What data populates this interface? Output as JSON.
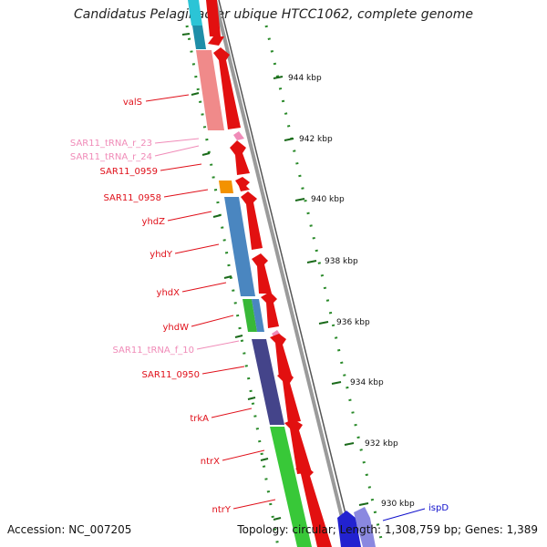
{
  "map": {
    "title": "Candidatus Pelagibacter ubique HTCC1062, complete genome",
    "accession": "Accession: NC_007205",
    "topology": "Topology: circular; Length: 1,308,759 bp; Genes: 1,389"
  },
  "ruler": [
    {
      "label": "944 kbp"
    },
    {
      "label": "942 kbp"
    },
    {
      "label": "940 kbp"
    },
    {
      "label": "938 kbp"
    },
    {
      "label": "936 kbp"
    },
    {
      "label": "934 kbp"
    },
    {
      "label": "932 kbp"
    },
    {
      "label": "930 kbp"
    }
  ],
  "gene_labels": [
    {
      "name": "valS",
      "kind": "gene",
      "color": "#e0101a"
    },
    {
      "name": "SAR11_tRNA_r_23",
      "kind": "tRNA",
      "color": "#f08bb8"
    },
    {
      "name": "SAR11_tRNA_r_24",
      "kind": "tRNA",
      "color": "#f08bb8"
    },
    {
      "name": "SAR11_0959",
      "kind": "gene",
      "color": "#e0101a"
    },
    {
      "name": "SAR11_0958",
      "kind": "gene",
      "color": "#e0101a"
    },
    {
      "name": "yhdZ",
      "kind": "gene",
      "color": "#e0101a"
    },
    {
      "name": "yhdY",
      "kind": "gene",
      "color": "#e0101a"
    },
    {
      "name": "yhdX",
      "kind": "gene",
      "color": "#e0101a"
    },
    {
      "name": "yhdW",
      "kind": "gene",
      "color": "#e0101a"
    },
    {
      "name": "SAR11_tRNA_f_10",
      "kind": "tRNA",
      "color": "#f08bb8"
    },
    {
      "name": "SAR11_0950",
      "kind": "gene",
      "color": "#e0101a"
    },
    {
      "name": "trkA",
      "kind": "gene",
      "color": "#e0101a"
    },
    {
      "name": "ntrX",
      "kind": "gene",
      "color": "#e0101a"
    },
    {
      "name": "ntrY",
      "kind": "gene",
      "color": "#e0101a"
    },
    {
      "name": "ispD",
      "kind": "gene",
      "color": "#1010cc"
    }
  ],
  "colors": {
    "cds": "#ff0000",
    "trna": "#f08bb8",
    "backbone": "#8c8c8c",
    "gc_skew_dots": "#2a8a2a"
  },
  "cog_colors": {
    "valS": "#f08a8a",
    "SAR11_0958": "#f39200",
    "yhdZ": "#4a86c0",
    "yhdY": "#4a86c0",
    "yhdX": "#4a86c0",
    "yhdW": "#38b838",
    "SAR11_0950": "#44448a",
    "trkA": "#44448a",
    "ntrX": "#38c838",
    "ntrY": "#38c838",
    "ispD": "#2222d0"
  }
}
